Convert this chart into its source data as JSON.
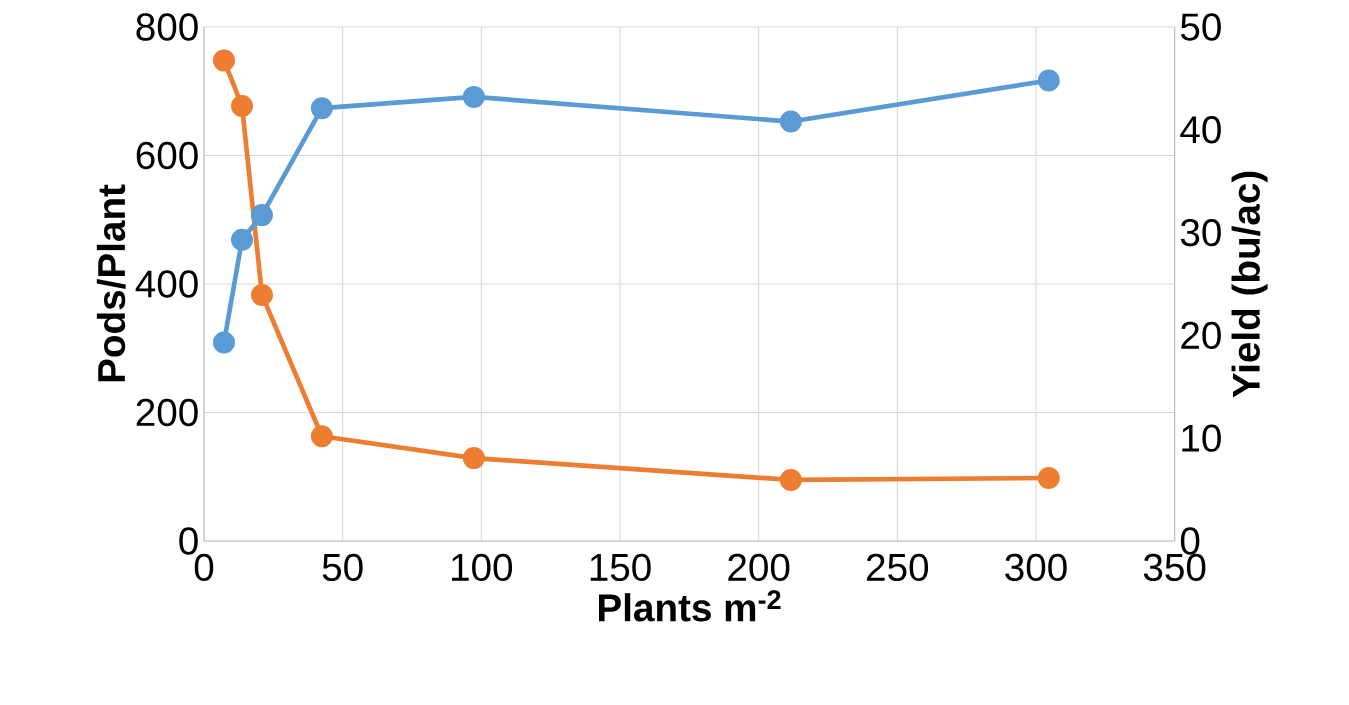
{
  "chart_data": {
    "type": "line",
    "xlabel": "Plants m$^{-2}$",
    "ylabel": "Pods/Plant",
    "y2label": "Yield (bu/ac)",
    "xlim": [
      0,
      350
    ],
    "xticks": [
      0,
      50,
      100,
      150,
      200,
      250,
      300,
      350
    ],
    "ylim": [
      0,
      800
    ],
    "yticks": [
      0,
      200,
      400,
      600,
      800
    ],
    "y2lim": [
      0,
      50
    ],
    "y2ticks": [
      0,
      10,
      20,
      30,
      40,
      50
    ],
    "grid": true,
    "marker": "circle",
    "line_style": "solid",
    "series": [
      {
        "color": "#ed7d31",
        "x": [
          7.2,
          13.7,
          20.9,
          42.5,
          97.3,
          211.6,
          304.6
        ],
        "values": [
          748,
          677,
          383,
          163,
          129,
          95,
          98
        ]
      },
      {
        "color": "#5b9bd5",
        "axis": "y2",
        "x": [
          7.2,
          13.7,
          20.9,
          42.5,
          97.3,
          211.6,
          304.6
        ],
        "values": [
          19.3,
          29.3,
          31.7,
          42.1,
          43.2,
          40.8,
          44.8
        ]
      }
    ]
  }
}
